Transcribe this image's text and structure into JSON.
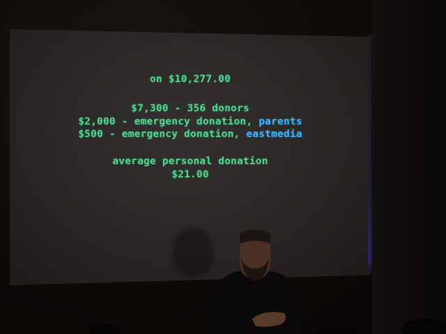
{
  "slide": {
    "total_line": "on $10,277.00",
    "donors_line": "$7,300 - 356 donors",
    "emergency1_text": "$2,000 - emergency donation,",
    "emergency1_source": "parents",
    "emergency2_text": "$500 - emergency donation,",
    "emergency2_source": "eastmedia",
    "average_label": "average personal donation",
    "average_value": "$21.00"
  },
  "colors": {
    "slide_text": "#4fd691",
    "highlight_text": "#39b6ff",
    "screen": "#2c2827",
    "room": "#0c0806"
  }
}
